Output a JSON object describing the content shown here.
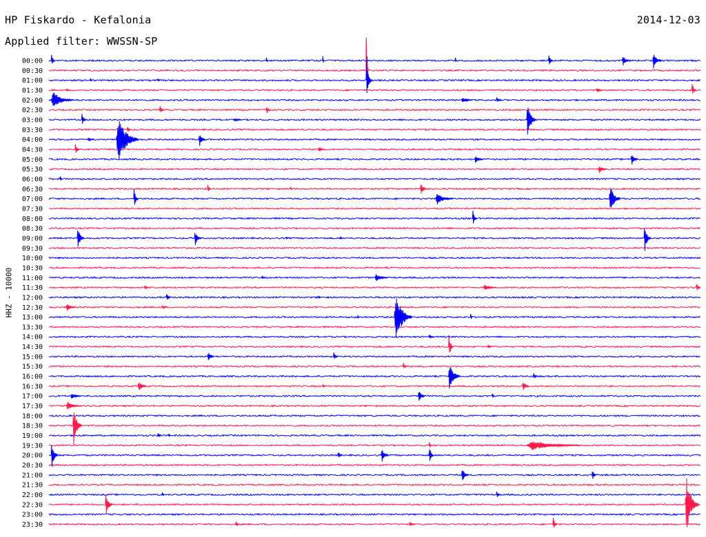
{
  "header": {
    "station": "HP Fiskardo - Kefalonia",
    "filter": "Applied filter: WWSSN-SP",
    "date": "2014-12-03",
    "channel": "HHZ - 10000"
  },
  "colors": {
    "odd_trace": "#0000ff",
    "even_trace": "#ff1a4b",
    "text": "#000000"
  },
  "chart_data": {
    "type": "line",
    "title": "HP Fiskardo - Kefalonia",
    "subtitle": "Applied filter: WWSSN-SP",
    "date": "2014-12-03",
    "ylabel": "HHZ - 10000",
    "xlabel": "",
    "grid": false,
    "row_labels": [
      "00:00",
      "00:30",
      "01:00",
      "01:30",
      "02:00",
      "02:30",
      "03:00",
      "03:30",
      "04:00",
      "04:30",
      "05:00",
      "05:30",
      "06:00",
      "06:30",
      "07:00",
      "07:30",
      "08:00",
      "08:30",
      "09:00",
      "09:30",
      "10:00",
      "10:30",
      "11:00",
      "11:30",
      "12:00",
      "12:30",
      "13:00",
      "13:30",
      "14:00",
      "14:30",
      "15:00",
      "15:30",
      "16:00",
      "16:30",
      "17:00",
      "17:30",
      "18:00",
      "18:30",
      "19:00",
      "19:30",
      "20:00",
      "20:30",
      "21:00",
      "21:30",
      "22:00",
      "22:30",
      "23:00",
      "23:30"
    ],
    "row_colors": [
      "blue",
      "red"
    ],
    "events": [
      {
        "row": "00:00",
        "minute": 0.1,
        "amp": 0.9,
        "dur": 0.15
      },
      {
        "row": "00:00",
        "minute": 10.0,
        "amp": 0.6,
        "dur": 0.05
      },
      {
        "row": "00:00",
        "minute": 12.6,
        "amp": 0.8,
        "dur": 0.05
      },
      {
        "row": "00:00",
        "minute": 14.6,
        "amp": 5.0,
        "dur": 0.05
      },
      {
        "row": "00:00",
        "minute": 18.7,
        "amp": 0.5,
        "dur": 0.05
      },
      {
        "row": "00:00",
        "minute": 23.0,
        "amp": 0.7,
        "dur": 0.2
      },
      {
        "row": "00:00",
        "minute": 26.4,
        "amp": 0.6,
        "dur": 0.3
      },
      {
        "row": "00:00",
        "minute": 27.8,
        "amp": 0.8,
        "dur": 0.4
      },
      {
        "row": "00:30",
        "minute": 14.6,
        "amp": 5.0,
        "dur": 0.1
      },
      {
        "row": "01:00",
        "minute": 1.9,
        "amp": 0.3,
        "dur": 0.1
      },
      {
        "row": "01:00",
        "minute": 5.0,
        "amp": 0.3,
        "dur": 0.1
      },
      {
        "row": "01:00",
        "minute": 14.6,
        "amp": 2.5,
        "dur": 0.25
      },
      {
        "row": "01:30",
        "minute": 0.8,
        "amp": 0.2,
        "dur": 0.1
      },
      {
        "row": "01:30",
        "minute": 25.2,
        "amp": 0.3,
        "dur": 0.3
      },
      {
        "row": "01:30",
        "minute": 29.6,
        "amp": 0.8,
        "dur": 0.2
      },
      {
        "row": "02:00",
        "minute": 0.1,
        "amp": 0.9,
        "dur": 1.0
      },
      {
        "row": "02:00",
        "minute": 19.0,
        "amp": 0.3,
        "dur": 0.5
      },
      {
        "row": "02:00",
        "minute": 20.6,
        "amp": 0.3,
        "dur": 0.2
      },
      {
        "row": "02:30",
        "minute": 5.1,
        "amp": 0.5,
        "dur": 0.2
      },
      {
        "row": "02:30",
        "minute": 10.0,
        "amp": 0.5,
        "dur": 0.2
      },
      {
        "row": "03:00",
        "minute": 1.5,
        "amp": 0.7,
        "dur": 0.2
      },
      {
        "row": "03:00",
        "minute": 8.5,
        "amp": 0.2,
        "dur": 0.4
      },
      {
        "row": "03:00",
        "minute": 22.0,
        "amp": 2.0,
        "dur": 0.4
      },
      {
        "row": "03:30",
        "minute": 3.6,
        "amp": 0.5,
        "dur": 0.15
      },
      {
        "row": "04:00",
        "minute": 1.8,
        "amp": 0.3,
        "dur": 0.2
      },
      {
        "row": "04:00",
        "minute": 3.1,
        "amp": 2.5,
        "dur": 1.0
      },
      {
        "row": "04:00",
        "minute": 6.9,
        "amp": 0.8,
        "dur": 0.3
      },
      {
        "row": "04:30",
        "minute": 1.2,
        "amp": 0.7,
        "dur": 0.2
      },
      {
        "row": "04:30",
        "minute": 12.4,
        "amp": 0.3,
        "dur": 0.3
      },
      {
        "row": "05:00",
        "minute": 19.6,
        "amp": 0.4,
        "dur": 0.4
      },
      {
        "row": "05:00",
        "minute": 26.8,
        "amp": 0.7,
        "dur": 0.3
      },
      {
        "row": "05:30",
        "minute": 25.3,
        "amp": 0.4,
        "dur": 0.4
      },
      {
        "row": "06:00",
        "minute": 0.5,
        "amp": 0.5,
        "dur": 0.1
      },
      {
        "row": "06:30",
        "minute": 7.3,
        "amp": 0.5,
        "dur": 0.15
      },
      {
        "row": "06:30",
        "minute": 11.1,
        "amp": 0.3,
        "dur": 0.1
      },
      {
        "row": "06:30",
        "minute": 17.1,
        "amp": 0.6,
        "dur": 0.3
      },
      {
        "row": "07:00",
        "minute": 3.9,
        "amp": 1.2,
        "dur": 0.2
      },
      {
        "row": "07:00",
        "minute": 17.8,
        "amp": 0.6,
        "dur": 0.8
      },
      {
        "row": "07:00",
        "minute": 25.8,
        "amp": 1.5,
        "dur": 0.5
      },
      {
        "row": "08:00",
        "minute": 19.5,
        "amp": 0.9,
        "dur": 0.2
      },
      {
        "row": "09:00",
        "minute": 1.3,
        "amp": 1.2,
        "dur": 0.3
      },
      {
        "row": "09:00",
        "minute": 6.7,
        "amp": 0.8,
        "dur": 0.3
      },
      {
        "row": "09:00",
        "minute": 10.9,
        "amp": 0.3,
        "dur": 0.1
      },
      {
        "row": "09:00",
        "minute": 13.4,
        "amp": 0.3,
        "dur": 0.1
      },
      {
        "row": "09:00",
        "minute": 27.4,
        "amp": 1.5,
        "dur": 0.3
      },
      {
        "row": "11:00",
        "minute": 9.8,
        "amp": 0.3,
        "dur": 0.1
      },
      {
        "row": "11:00",
        "minute": 15.0,
        "amp": 0.4,
        "dur": 0.6
      },
      {
        "row": "11:30",
        "minute": 4.4,
        "amp": 0.3,
        "dur": 0.2
      },
      {
        "row": "11:30",
        "minute": 20.0,
        "amp": 0.3,
        "dur": 0.6
      },
      {
        "row": "11:30",
        "minute": 29.8,
        "amp": 0.5,
        "dur": 0.2
      },
      {
        "row": "12:00",
        "minute": 5.4,
        "amp": 0.5,
        "dur": 0.2
      },
      {
        "row": "12:00",
        "minute": 12.4,
        "amp": 0.3,
        "dur": 0.1
      },
      {
        "row": "12:30",
        "minute": 0.8,
        "amp": 0.4,
        "dur": 0.4
      },
      {
        "row": "12:30",
        "minute": 5.2,
        "amp": 0.3,
        "dur": 0.2
      },
      {
        "row": "13:00",
        "minute": 14.2,
        "amp": 0.3,
        "dur": 0.1
      },
      {
        "row": "13:00",
        "minute": 15.9,
        "amp": 2.5,
        "dur": 0.8
      },
      {
        "row": "13:00",
        "minute": 19.4,
        "amp": 0.5,
        "dur": 0.1
      },
      {
        "row": "14:00",
        "minute": 17.5,
        "amp": 0.3,
        "dur": 0.2
      },
      {
        "row": "14:30",
        "minute": 18.4,
        "amp": 1.5,
        "dur": 0.2
      },
      {
        "row": "14:30",
        "minute": 20.2,
        "amp": 0.3,
        "dur": 0.2
      },
      {
        "row": "15:00",
        "minute": 7.3,
        "amp": 0.6,
        "dur": 0.3
      },
      {
        "row": "15:00",
        "minute": 13.1,
        "amp": 0.5,
        "dur": 0.2
      },
      {
        "row": "15:30",
        "minute": 16.3,
        "amp": 0.4,
        "dur": 0.2
      },
      {
        "row": "16:00",
        "minute": 18.4,
        "amp": 1.5,
        "dur": 0.5
      },
      {
        "row": "16:00",
        "minute": 22.3,
        "amp": 0.4,
        "dur": 0.2
      },
      {
        "row": "16:30",
        "minute": 4.1,
        "amp": 0.6,
        "dur": 0.4
      },
      {
        "row": "16:30",
        "minute": 12.6,
        "amp": 0.3,
        "dur": 0.1
      },
      {
        "row": "16:30",
        "minute": 21.8,
        "amp": 0.6,
        "dur": 0.3
      },
      {
        "row": "17:00",
        "minute": 1.0,
        "amp": 0.3,
        "dur": 0.5
      },
      {
        "row": "17:00",
        "minute": 17.0,
        "amp": 0.7,
        "dur": 0.3
      },
      {
        "row": "17:00",
        "minute": 20.4,
        "amp": 0.5,
        "dur": 0.1
      },
      {
        "row": "17:30",
        "minute": 0.8,
        "amp": 0.5,
        "dur": 0.6
      },
      {
        "row": "18:30",
        "minute": 1.1,
        "amp": 2.0,
        "dur": 0.4
      },
      {
        "row": "19:00",
        "minute": 5.0,
        "amp": 0.3,
        "dur": 0.2
      },
      {
        "row": "19:00",
        "minute": 5.5,
        "amp": 0.3,
        "dur": 0.1
      },
      {
        "row": "19:30",
        "minute": 17.5,
        "amp": 0.7,
        "dur": 0.1
      },
      {
        "row": "19:30",
        "minute": 22.0,
        "amp": 0.5,
        "dur": 2.5
      },
      {
        "row": "20:00",
        "minute": 0.1,
        "amp": 1.5,
        "dur": 0.3
      },
      {
        "row": "20:00",
        "minute": 13.3,
        "amp": 0.5,
        "dur": 0.2
      },
      {
        "row": "20:00",
        "minute": 15.3,
        "amp": 0.8,
        "dur": 0.3
      },
      {
        "row": "20:00",
        "minute": 17.5,
        "amp": 1.0,
        "dur": 0.2
      },
      {
        "row": "21:00",
        "minute": 19.0,
        "amp": 0.8,
        "dur": 0.3
      },
      {
        "row": "21:00",
        "minute": 25.0,
        "amp": 0.6,
        "dur": 0.2
      },
      {
        "row": "22:00",
        "minute": 5.2,
        "amp": 0.5,
        "dur": 0.1
      },
      {
        "row": "22:00",
        "minute": 20.6,
        "amp": 0.4,
        "dur": 0.2
      },
      {
        "row": "22:30",
        "minute": 2.6,
        "amp": 1.5,
        "dur": 0.3
      },
      {
        "row": "22:30",
        "minute": 29.3,
        "amp": 3.0,
        "dur": 0.6
      },
      {
        "row": "23:30",
        "minute": 8.6,
        "amp": 0.3,
        "dur": 0.2
      },
      {
        "row": "23:30",
        "minute": 16.6,
        "amp": 0.3,
        "dur": 0.2
      },
      {
        "row": "23:30",
        "minute": 23.2,
        "amp": 0.7,
        "dur": 0.2
      }
    ]
  }
}
